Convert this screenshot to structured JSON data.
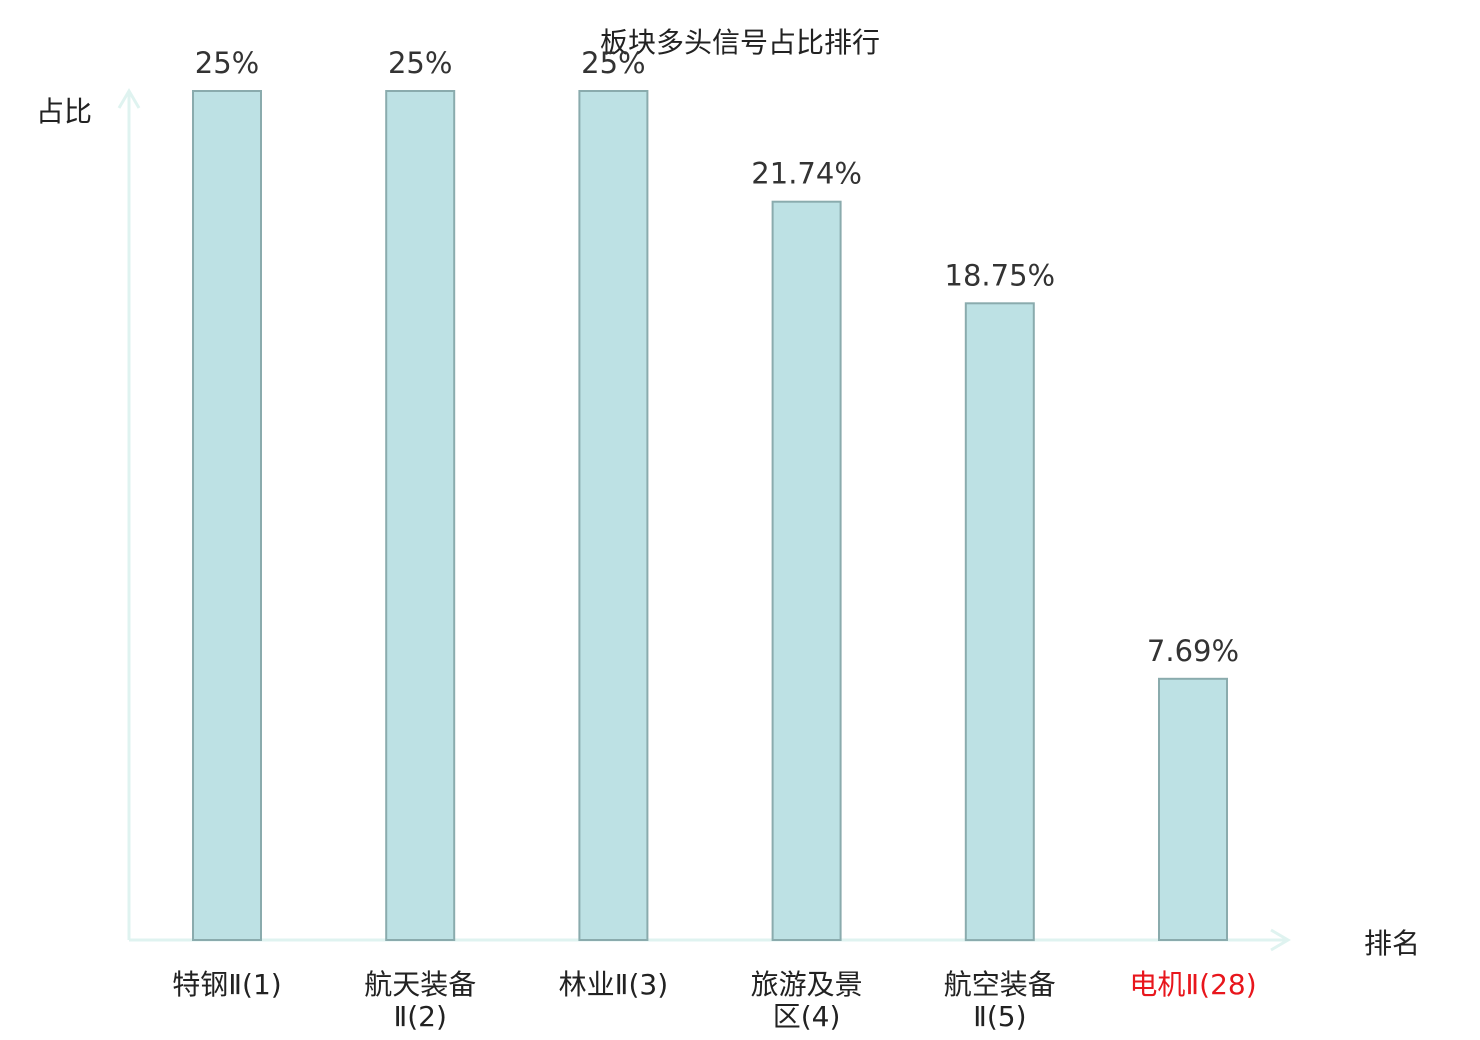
{
  "chart_data": {
    "type": "bar",
    "title": "板块多头信号占比排行",
    "xlabel": "排名",
    "ylabel": "占比",
    "categories": [
      [
        "特钢Ⅱ(1)"
      ],
      [
        "航天装备",
        "Ⅱ(2)"
      ],
      [
        "林业Ⅱ(3)"
      ],
      [
        "旅游及景",
        "区(4)"
      ],
      [
        "航空装备",
        "Ⅱ(5)"
      ],
      [
        "电机Ⅱ(28)"
      ]
    ],
    "values": [
      25,
      25,
      25,
      21.74,
      18.75,
      7.69
    ],
    "value_labels": [
      "25%",
      "25%",
      "25%",
      "21.74%",
      "18.75%",
      "7.69%"
    ],
    "ylim": [
      0,
      25
    ],
    "highlight_index": 5,
    "colors": {
      "bar_fill": "#bde1e4",
      "bar_stroke": "#8aabad",
      "axis": "#dff3f0",
      "highlight_text": "#e8161c",
      "normal_text": "#222222"
    },
    "grid": false,
    "legend": "none"
  }
}
